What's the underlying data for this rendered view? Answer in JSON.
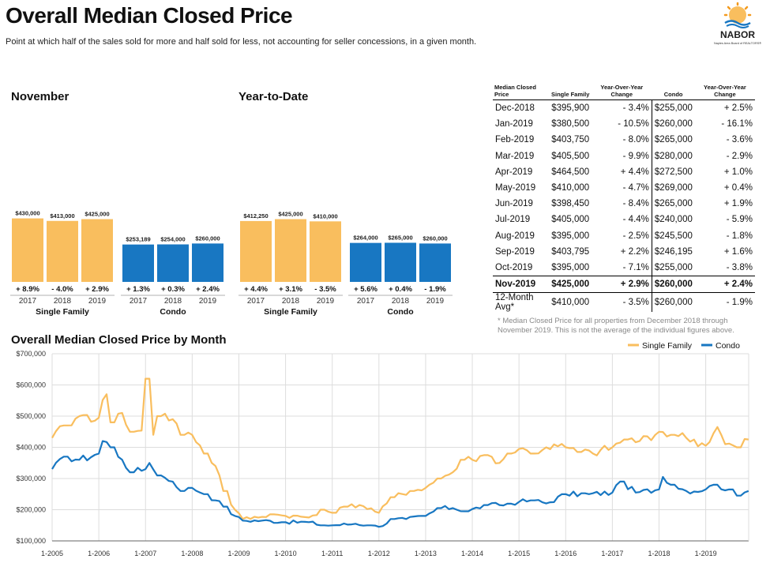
{
  "header": {
    "title": "Overall Median Closed Price",
    "subtitle": "Point at which half of the sales sold for more and half sold for less, not accounting for seller concessions, in a given month."
  },
  "logo": {
    "name": "NABOR",
    "tagline": "Naples Area Board of REALTORS®"
  },
  "colors": {
    "single_family": "#F9BE5E",
    "condo": "#1877C2",
    "grid": "#dddddd"
  },
  "sections": {
    "november": "November",
    "ytd": "Year-to-Date",
    "monthly": "Overall Median Closed Price by Month"
  },
  "group_labels": {
    "single_family": "Single Family",
    "condo": "Condo"
  },
  "table": {
    "headers": [
      "Median Closed Price",
      "Single Family",
      "Year-Over-Year Change",
      "Condo",
      "Year-Over-Year Change"
    ],
    "rows": [
      [
        "Dec-2018",
        "$395,900",
        "- 3.4%",
        "$255,000",
        "+ 2.5%"
      ],
      [
        "Jan-2019",
        "$380,500",
        "- 10.5%",
        "$260,000",
        "- 16.1%"
      ],
      [
        "Feb-2019",
        "$403,750",
        "- 8.0%",
        "$265,000",
        "- 3.6%"
      ],
      [
        "Mar-2019",
        "$405,500",
        "- 9.9%",
        "$280,000",
        "- 2.9%"
      ],
      [
        "Apr-2019",
        "$464,500",
        "+ 4.4%",
        "$272,500",
        "+ 1.0%"
      ],
      [
        "May-2019",
        "$410,000",
        "- 4.7%",
        "$269,000",
        "+ 0.4%"
      ],
      [
        "Jun-2019",
        "$398,450",
        "- 8.4%",
        "$265,000",
        "+ 1.9%"
      ],
      [
        "Jul-2019",
        "$405,000",
        "- 4.4%",
        "$240,000",
        "- 5.9%"
      ],
      [
        "Aug-2019",
        "$395,000",
        "- 2.5%",
        "$245,500",
        "- 1.8%"
      ],
      [
        "Sep-2019",
        "$403,795",
        "+ 2.2%",
        "$246,195",
        "+ 1.6%"
      ],
      [
        "Oct-2019",
        "$395,000",
        "- 7.1%",
        "$255,000",
        "- 3.8%"
      ],
      [
        "Nov-2019",
        "$425,000",
        "+ 2.9%",
        "$260,000",
        "+ 2.4%"
      ],
      [
        "12-Month Avg*",
        "$410,000",
        "- 3.5%",
        "$260,000",
        "- 1.9%"
      ]
    ],
    "footnote": "* Median Closed Price for all properties from December 2018 through November 2019. This is not the average of the individual figures above."
  },
  "chart_data": [
    {
      "type": "bar",
      "title": "November",
      "categories": [
        "2017",
        "2018",
        "2019"
      ],
      "series": [
        {
          "name": "Single Family",
          "values": [
            430000,
            413000,
            425000
          ],
          "labels": [
            "$430,000",
            "$413,000",
            "$425,000"
          ],
          "changes": [
            "+ 8.9%",
            "- 4.0%",
            "+ 2.9%"
          ]
        },
        {
          "name": "Condo",
          "values": [
            253189,
            254000,
            260000
          ],
          "labels": [
            "$253,189",
            "$254,000",
            "$260,000"
          ],
          "changes": [
            "+ 1.3%",
            "+ 0.3%",
            "+ 2.4%"
          ]
        }
      ]
    },
    {
      "type": "bar",
      "title": "Year-to-Date",
      "categories": [
        "2017",
        "2018",
        "2019"
      ],
      "series": [
        {
          "name": "Single Family",
          "values": [
            412250,
            425000,
            410000
          ],
          "labels": [
            "$412,250",
            "$425,000",
            "$410,000"
          ],
          "changes": [
            "+ 4.4%",
            "+ 3.1%",
            "- 3.5%"
          ]
        },
        {
          "name": "Condo",
          "values": [
            264000,
            265000,
            260000
          ],
          "labels": [
            "$264,000",
            "$265,000",
            "$260,000"
          ],
          "changes": [
            "+ 5.6%",
            "+ 0.4%",
            "- 1.9%"
          ]
        }
      ]
    },
    {
      "type": "line",
      "title": "Overall Median Closed Price by Month",
      "ylim": [
        100000,
        700000
      ],
      "y_ticks": [
        "$100,000",
        "$200,000",
        "$300,000",
        "$400,000",
        "$500,000",
        "$600,000",
        "$700,000"
      ],
      "x_ticks": [
        "1-2005",
        "1-2006",
        "1-2007",
        "1-2008",
        "1-2009",
        "1-2010",
        "1-2011",
        "1-2012",
        "1-2013",
        "1-2014",
        "1-2015",
        "1-2016",
        "1-2017",
        "1-2018",
        "1-2019"
      ],
      "grid": true,
      "legend": "top-right",
      "series": [
        {
          "name": "Single Family",
          "anchors": [
            [
              2005.0,
              430000
            ],
            [
              2005.3,
              470000
            ],
            [
              2005.6,
              500000
            ],
            [
              2006.0,
              495000
            ],
            [
              2006.15,
              570000
            ],
            [
              2006.3,
              480000
            ],
            [
              2006.5,
              510000
            ],
            [
              2006.7,
              450000
            ],
            [
              2007.0,
              470000
            ],
            [
              2007.05,
              620000
            ],
            [
              2007.15,
              440000
            ],
            [
              2007.3,
              500000
            ],
            [
              2007.6,
              490000
            ],
            [
              2007.8,
              440000
            ],
            [
              2008.0,
              440000
            ],
            [
              2008.3,
              380000
            ],
            [
              2008.5,
              340000
            ],
            [
              2008.7,
              260000
            ],
            [
              2008.9,
              200000
            ],
            [
              2009.1,
              170000
            ],
            [
              2009.4,
              175000
            ],
            [
              2009.7,
              185000
            ],
            [
              2010.0,
              180000
            ],
            [
              2010.5,
              175000
            ],
            [
              2010.8,
              200000
            ],
            [
              2011.0,
              190000
            ],
            [
              2011.3,
              210000
            ],
            [
              2011.6,
              215000
            ],
            [
              2012.0,
              190000
            ],
            [
              2012.3,
              240000
            ],
            [
              2012.7,
              260000
            ],
            [
              2013.0,
              270000
            ],
            [
              2013.3,
              300000
            ],
            [
              2013.6,
              320000
            ],
            [
              2013.8,
              360000
            ],
            [
              2014.0,
              360000
            ],
            [
              2014.3,
              375000
            ],
            [
              2014.6,
              350000
            ],
            [
              2014.8,
              380000
            ],
            [
              2015.0,
              395000
            ],
            [
              2015.3,
              380000
            ],
            [
              2015.6,
              400000
            ],
            [
              2016.0,
              400000
            ],
            [
              2016.3,
              385000
            ],
            [
              2016.6,
              380000
            ],
            [
              2017.0,
              400000
            ],
            [
              2017.3,
              425000
            ],
            [
              2017.6,
              420000
            ],
            [
              2018.0,
              450000
            ],
            [
              2018.3,
              440000
            ],
            [
              2018.6,
              430000
            ],
            [
              2019.0,
              405000
            ],
            [
              2019.25,
              465000
            ],
            [
              2019.4,
              410000
            ],
            [
              2019.7,
              400000
            ],
            [
              2019.92,
              425000
            ]
          ]
        },
        {
          "name": "Condo",
          "anchors": [
            [
              2005.0,
              330000
            ],
            [
              2005.3,
              370000
            ],
            [
              2005.6,
              360000
            ],
            [
              2006.0,
              380000
            ],
            [
              2006.1,
              420000
            ],
            [
              2006.3,
              400000
            ],
            [
              2006.5,
              360000
            ],
            [
              2006.7,
              320000
            ],
            [
              2007.0,
              330000
            ],
            [
              2007.1,
              350000
            ],
            [
              2007.3,
              310000
            ],
            [
              2007.6,
              290000
            ],
            [
              2007.8,
              260000
            ],
            [
              2008.0,
              270000
            ],
            [
              2008.3,
              250000
            ],
            [
              2008.5,
              230000
            ],
            [
              2008.7,
              210000
            ],
            [
              2008.9,
              180000
            ],
            [
              2009.1,
              165000
            ],
            [
              2009.5,
              165000
            ],
            [
              2010.0,
              160000
            ],
            [
              2010.5,
              160000
            ],
            [
              2010.8,
              150000
            ],
            [
              2011.0,
              150000
            ],
            [
              2011.5,
              155000
            ],
            [
              2011.8,
              150000
            ],
            [
              2012.0,
              145000
            ],
            [
              2012.3,
              170000
            ],
            [
              2012.6,
              170000
            ],
            [
              2013.0,
              180000
            ],
            [
              2013.3,
              205000
            ],
            [
              2013.6,
              205000
            ],
            [
              2013.9,
              195000
            ],
            [
              2014.3,
              215000
            ],
            [
              2014.6,
              215000
            ],
            [
              2015.0,
              225000
            ],
            [
              2015.3,
              230000
            ],
            [
              2015.6,
              220000
            ],
            [
              2016.0,
              250000
            ],
            [
              2016.5,
              250000
            ],
            [
              2017.0,
              255000
            ],
            [
              2017.2,
              290000
            ],
            [
              2017.5,
              255000
            ],
            [
              2018.0,
              265000
            ],
            [
              2018.1,
              305000
            ],
            [
              2018.3,
              280000
            ],
            [
              2018.6,
              260000
            ],
            [
              2019.0,
              265000
            ],
            [
              2019.2,
              280000
            ],
            [
              2019.5,
              265000
            ],
            [
              2019.7,
              245000
            ],
            [
              2019.92,
              260000
            ]
          ]
        }
      ]
    }
  ]
}
